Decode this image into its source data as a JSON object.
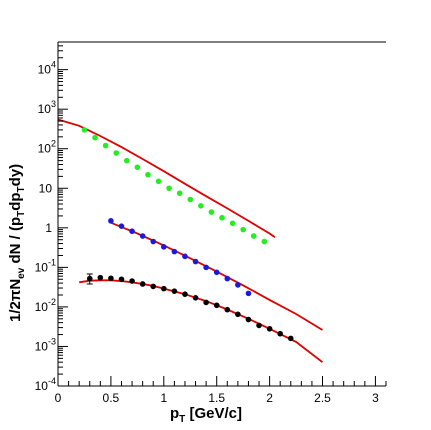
{
  "chart_data": {
    "type": "scatter",
    "title": "",
    "xlabel": {
      "base": "p",
      "sub": "T",
      "rest": " [GeV/c]"
    },
    "ylabel": {
      "p1": "1/2πN",
      "sub1": "ev",
      "p2": " dN / (p",
      "sub2": "T",
      "p3": "dp",
      "sub3": "T",
      "p4": "dy)"
    },
    "x_axis": {
      "range": [
        0,
        3.1
      ],
      "ticks": [
        0,
        0.5,
        1,
        1.5,
        2,
        2.5,
        3
      ],
      "tick_labels": [
        "0",
        "0.5",
        "1",
        "1.5",
        "2",
        "2.5",
        "3"
      ]
    },
    "y_axis": {
      "scale": "log",
      "range": [
        0.0001,
        50000
      ],
      "ticks": [
        {
          "value": 0.0001,
          "base": "10",
          "exp": "-4"
        },
        {
          "value": 0.001,
          "base": "10",
          "exp": "-3"
        },
        {
          "value": 0.01,
          "base": "10",
          "exp": "-2"
        },
        {
          "value": 0.1,
          "base": "10",
          "exp": "-1"
        },
        {
          "value": 1,
          "base": "1",
          "exp": ""
        },
        {
          "value": 10,
          "base": "10",
          "exp": ""
        },
        {
          "value": 100,
          "base": "10",
          "exp": "2"
        },
        {
          "value": 1000,
          "base": "10",
          "exp": "3"
        },
        {
          "value": 10000,
          "base": "10",
          "exp": "4"
        }
      ]
    },
    "grid": false,
    "legend": "none",
    "series": [
      {
        "color": "#22ee22",
        "points": [
          [
            0.25,
            300
          ],
          [
            0.35,
            190
          ],
          [
            0.45,
            120
          ],
          [
            0.55,
            78
          ],
          [
            0.65,
            50
          ],
          [
            0.75,
            34
          ],
          [
            0.85,
            22
          ],
          [
            0.95,
            15
          ],
          [
            1.05,
            10
          ],
          [
            1.15,
            7.5
          ],
          [
            1.25,
            5.2
          ],
          [
            1.35,
            3.6
          ],
          [
            1.45,
            2.5
          ],
          [
            1.55,
            1.8
          ],
          [
            1.65,
            1.3
          ],
          [
            1.75,
            0.9
          ],
          [
            1.85,
            0.62
          ],
          [
            1.95,
            0.45
          ]
        ]
      },
      {
        "color": "#1a1add",
        "points": [
          [
            0.5,
            1.5
          ],
          [
            0.6,
            1.1
          ],
          [
            0.7,
            0.82
          ],
          [
            0.8,
            0.62
          ],
          [
            0.9,
            0.45
          ],
          [
            1.0,
            0.33
          ],
          [
            1.1,
            0.25
          ],
          [
            1.2,
            0.19
          ],
          [
            1.3,
            0.14
          ],
          [
            1.4,
            0.1
          ],
          [
            1.5,
            0.075
          ],
          [
            1.6,
            0.052
          ],
          [
            1.7,
            0.036
          ],
          [
            1.8,
            0.022
          ]
        ]
      },
      {
        "color": "#000000",
        "points": [
          [
            0.3,
            0.052
          ],
          [
            0.4,
            0.055
          ],
          [
            0.5,
            0.053
          ],
          [
            0.6,
            0.05
          ],
          [
            0.7,
            0.045
          ],
          [
            0.8,
            0.038
          ],
          [
            0.9,
            0.033
          ],
          [
            1.0,
            0.029
          ],
          [
            1.1,
            0.025
          ],
          [
            1.2,
            0.021
          ],
          [
            1.3,
            0.017
          ],
          [
            1.4,
            0.013
          ],
          [
            1.5,
            0.011
          ],
          [
            1.6,
            0.0085
          ],
          [
            1.7,
            0.0065
          ],
          [
            1.8,
            0.0048
          ],
          [
            1.9,
            0.0034
          ],
          [
            2.0,
            0.0028
          ],
          [
            2.1,
            0.0021
          ],
          [
            2.2,
            0.0016
          ]
        ],
        "error_bar": {
          "x": 0.3,
          "low": 0.038,
          "high": 0.068
        }
      }
    ],
    "fit_curves": [
      {
        "color": "#dd0000",
        "points": [
          [
            0,
            550
          ],
          [
            0.2,
            380
          ],
          [
            0.4,
            210
          ],
          [
            0.6,
            110
          ],
          [
            0.8,
            55
          ],
          [
            1.0,
            27
          ],
          [
            1.2,
            13
          ],
          [
            1.4,
            6.3
          ],
          [
            1.6,
            3.1
          ],
          [
            1.8,
            1.5
          ],
          [
            2.0,
            0.72
          ],
          [
            2.05,
            0.58
          ]
        ]
      },
      {
        "color": "#dd0000",
        "points": [
          [
            0.5,
            1.35
          ],
          [
            0.75,
            0.72
          ],
          [
            1.0,
            0.36
          ],
          [
            1.25,
            0.17
          ],
          [
            1.5,
            0.078
          ],
          [
            1.75,
            0.035
          ],
          [
            2.0,
            0.015
          ],
          [
            2.25,
            0.0066
          ],
          [
            2.5,
            0.0026
          ]
        ]
      },
      {
        "color": "#dd0000",
        "points": [
          [
            0.2,
            0.042
          ],
          [
            0.3,
            0.046
          ],
          [
            0.4,
            0.047
          ],
          [
            0.5,
            0.047
          ],
          [
            0.6,
            0.045
          ],
          [
            0.7,
            0.042
          ],
          [
            0.8,
            0.038
          ],
          [
            0.9,
            0.034
          ],
          [
            1.0,
            0.029
          ],
          [
            1.2,
            0.021
          ],
          [
            1.4,
            0.014
          ],
          [
            1.6,
            0.0086
          ],
          [
            1.8,
            0.005
          ],
          [
            2.0,
            0.0028
          ],
          [
            2.25,
            0.0013
          ],
          [
            2.5,
            0.0004
          ]
        ]
      }
    ]
  }
}
